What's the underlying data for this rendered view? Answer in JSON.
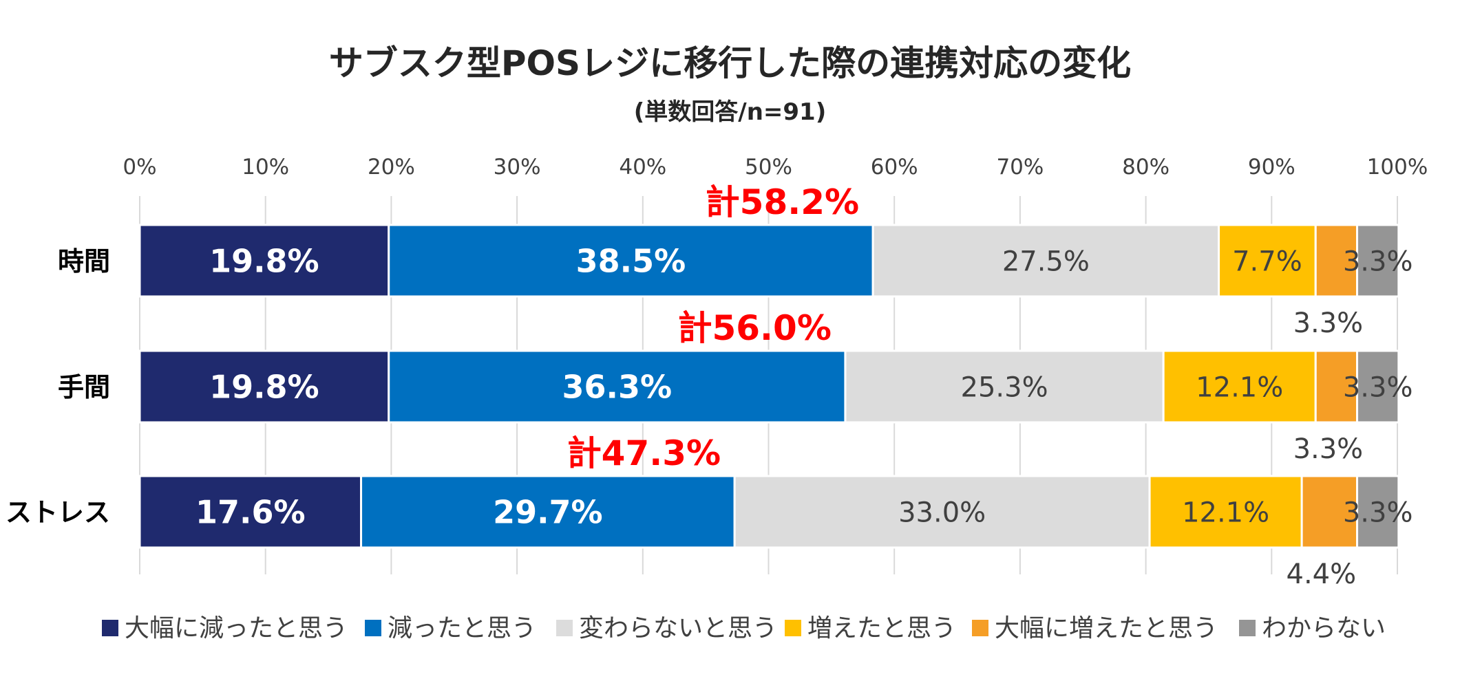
{
  "chart_data": {
    "type": "bar",
    "orientation": "horizontal",
    "stacked": true,
    "title": "サブスク型POSレジに移行した際の連携対応の変化",
    "subtitle": "(単数回答/n=91)",
    "xlim": [
      0,
      100
    ],
    "x_ticks": [
      "0%",
      "10%",
      "20%",
      "30%",
      "40%",
      "50%",
      "60%",
      "70%",
      "80%",
      "90%",
      "100%"
    ],
    "grid": true,
    "legend_position": "bottom",
    "categories": [
      "時間",
      "手間",
      "ストレス"
    ],
    "series": [
      {
        "name": "大幅に減ったと思う",
        "color": "#1f2a6e",
        "values": [
          19.8,
          19.8,
          17.6
        ],
        "labels": [
          "19.8%",
          "19.8%",
          "17.6%"
        ]
      },
      {
        "name": "減ったと思う",
        "color": "#0070c0",
        "values": [
          38.5,
          36.3,
          29.7
        ],
        "labels": [
          "38.5%",
          "36.3%",
          "29.7%"
        ]
      },
      {
        "name": "変わらないと思う",
        "color": "#dcdcdc",
        "values": [
          27.5,
          25.3,
          33.0
        ],
        "labels": [
          "27.5%",
          "25.3%",
          "33.0%"
        ]
      },
      {
        "name": "増えたと思う",
        "color": "#ffc000",
        "values": [
          7.7,
          12.1,
          12.1
        ],
        "labels": [
          "7.7%",
          "12.1%",
          "12.1%"
        ]
      },
      {
        "name": "大幅に増えたと思う",
        "color": "#f59e26",
        "values": [
          3.3,
          3.3,
          4.4
        ],
        "labels": [
          "3.3%",
          "3.3%",
          "4.4%"
        ]
      },
      {
        "name": "わからない",
        "color": "#959595",
        "values": [
          3.3,
          3.3,
          3.3
        ],
        "labels": [
          "3.3%",
          "3.3%",
          "3.3%"
        ]
      }
    ],
    "totals": [
      "計58.2%",
      "計56.0%",
      "計47.3%"
    ],
    "total_color": "#ff0000"
  }
}
